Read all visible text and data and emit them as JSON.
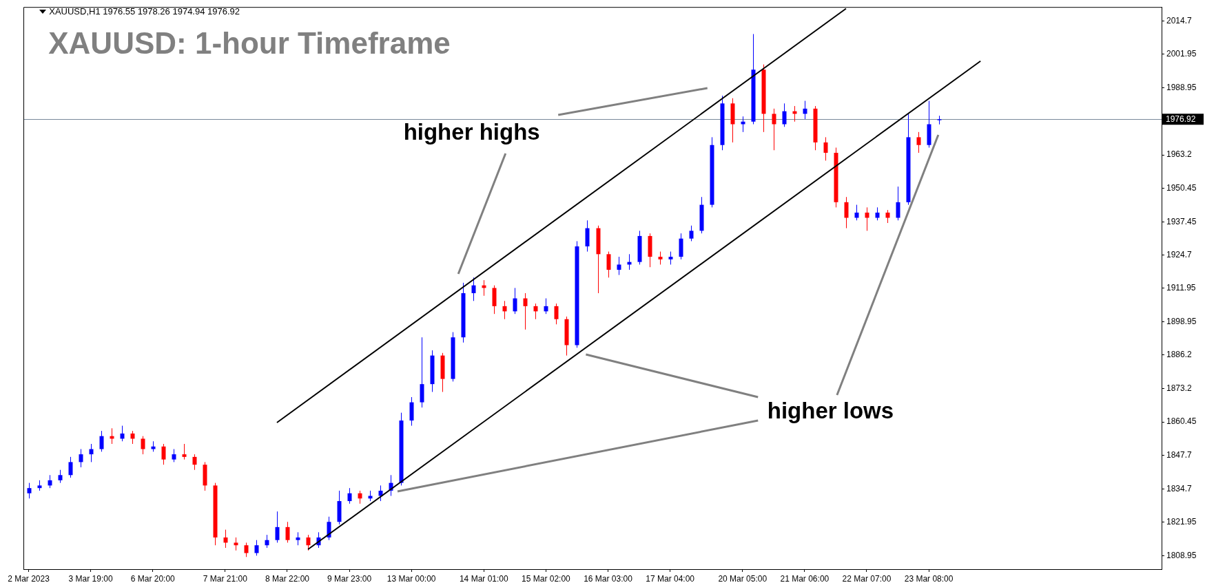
{
  "chart_data": {
    "type": "candlestick",
    "title": "XAUUSD: 1-hour Timeframe",
    "annotations": [
      "XAUUSD,H1  1976.55 1978.26 1974.94 1976.92",
      "higher highs",
      "higher lows"
    ],
    "ylim": [
      1803.8,
      2020.1
    ],
    "categories": [
      "2 Mar 2023",
      null,
      null,
      null,
      null,
      null,
      "3 Mar 19:00",
      null,
      null,
      null,
      null,
      null,
      "6 Mar 20:00",
      null,
      null,
      null,
      null,
      null,
      null,
      "7 Mar 21:00",
      null,
      null,
      null,
      null,
      null,
      "8 Mar 22:00",
      null,
      null,
      null,
      null,
      null,
      "9 Mar 23:00",
      null,
      null,
      null,
      null,
      null,
      "13 Mar 00:00",
      null,
      null,
      null,
      null,
      null,
      null,
      "14 Mar 01:00",
      null,
      null,
      null,
      null,
      null,
      "15 Mar 02:00",
      null,
      null,
      null,
      null,
      null,
      "16 Mar 03:00",
      null,
      null,
      null,
      null,
      null,
      "17 Mar 04:00",
      null,
      null,
      null,
      null,
      null,
      null,
      "20 Mar 05:00",
      null,
      null,
      null,
      null,
      null,
      "21 Mar 06:00",
      null,
      null,
      null,
      null,
      null,
      "22 Mar 07:00",
      null,
      null,
      null,
      null,
      null,
      "23 Mar 08:00",
      null,
      null,
      null,
      null,
      null,
      null,
      null,
      null,
      null,
      null,
      null,
      null,
      null,
      null,
      null,
      null,
      null,
      null,
      null,
      null,
      null,
      null
    ],
    "yticks": [
      1808.95,
      1821.95,
      1834.7,
      1847.7,
      1860.45,
      1873.2,
      1886.2,
      1898.95,
      1911.95,
      1924.7,
      1937.45,
      1950.45,
      1963.2,
      1988.95,
      2001.95,
      2014.7
    ],
    "ref_lines": [
      {
        "axis": "y",
        "value": 1976.92,
        "label": "1976.92",
        "color": "#778899"
      }
    ],
    "series": [
      {
        "type": "candlestick",
        "ohlc": [
          [
            1833,
            1837,
            1831,
            1835
          ],
          [
            1835,
            1838,
            1834,
            1836
          ],
          [
            1836,
            1840,
            1835,
            1838
          ],
          [
            1838,
            1842,
            1837,
            1840
          ],
          [
            1840,
            1847,
            1839,
            1845
          ],
          [
            1845,
            1850,
            1843,
            1848
          ],
          [
            1848,
            1852,
            1845,
            1850
          ],
          [
            1850,
            1857,
            1849,
            1855
          ],
          [
            1855,
            1858,
            1852,
            1854
          ],
          [
            1854,
            1859,
            1853,
            1856
          ],
          [
            1856,
            1857,
            1852,
            1854
          ],
          [
            1854,
            1855,
            1848,
            1850
          ],
          [
            1850,
            1853,
            1849,
            1851
          ],
          [
            1851,
            1852,
            1844,
            1846
          ],
          [
            1846,
            1850,
            1845,
            1848
          ],
          [
            1848,
            1852,
            1846,
            1847
          ],
          [
            1847,
            1848,
            1842,
            1844
          ],
          [
            1844,
            1845,
            1834,
            1836
          ],
          [
            1836,
            1837,
            1813,
            1816
          ],
          [
            1816,
            1819,
            1812,
            1814
          ],
          [
            1814,
            1816,
            1811,
            1813
          ],
          [
            1813,
            1814,
            1808.5,
            1810
          ],
          [
            1810,
            1815,
            1809,
            1813
          ],
          [
            1813,
            1817,
            1812,
            1815
          ],
          [
            1815,
            1826,
            1814,
            1820
          ],
          [
            1820,
            1822,
            1814,
            1815
          ],
          [
            1815,
            1818,
            1813,
            1816
          ],
          [
            1816,
            1817,
            1811,
            1813
          ],
          [
            1813,
            1818,
            1812,
            1816
          ],
          [
            1816,
            1824,
            1815,
            1822
          ],
          [
            1822,
            1834,
            1821,
            1830
          ],
          [
            1830,
            1835,
            1829,
            1833
          ],
          [
            1833,
            1834,
            1829,
            1831
          ],
          [
            1831,
            1834,
            1830,
            1832
          ],
          [
            1832,
            1836,
            1830,
            1834
          ],
          [
            1834,
            1840,
            1832,
            1837
          ],
          [
            1837,
            1864,
            1836,
            1861
          ],
          [
            1861,
            1870,
            1859,
            1868
          ],
          [
            1868,
            1893,
            1866,
            1875
          ],
          [
            1875,
            1888,
            1872,
            1886
          ],
          [
            1886,
            1887,
            1872,
            1877
          ],
          [
            1877,
            1895,
            1876,
            1893
          ],
          [
            1893,
            1914,
            1891,
            1910
          ],
          [
            1910,
            1916,
            1907,
            1913
          ],
          [
            1913,
            1915,
            1909,
            1912
          ],
          [
            1912,
            1913,
            1902,
            1905
          ],
          [
            1905,
            1907,
            1900,
            1903
          ],
          [
            1903,
            1912,
            1902,
            1908
          ],
          [
            1908,
            1910,
            1896,
            1905
          ],
          [
            1905,
            1906,
            1900,
            1903
          ],
          [
            1903,
            1908,
            1902,
            1905
          ],
          [
            1905,
            1906,
            1898,
            1900
          ],
          [
            1900,
            1901,
            1886,
            1890
          ],
          [
            1890,
            1930,
            1889,
            1928
          ],
          [
            1928,
            1938,
            1926,
            1935
          ],
          [
            1935,
            1936,
            1910,
            1925
          ],
          [
            1925,
            1926,
            1916,
            1919
          ],
          [
            1919,
            1924,
            1917,
            1921
          ],
          [
            1921,
            1925,
            1919,
            1922
          ],
          [
            1922,
            1934,
            1921,
            1932
          ],
          [
            1932,
            1933,
            1920,
            1924
          ],
          [
            1924,
            1926,
            1921,
            1923
          ],
          [
            1923,
            1926,
            1921,
            1924
          ],
          [
            1924,
            1933,
            1923,
            1931
          ],
          [
            1931,
            1936,
            1930,
            1934
          ],
          [
            1934,
            1947,
            1933,
            1944
          ],
          [
            1944,
            1970,
            1943,
            1967
          ],
          [
            1967,
            1986,
            1965,
            1983
          ],
          [
            1983,
            1985,
            1968,
            1975
          ],
          [
            1975,
            1978,
            1972,
            1976
          ],
          [
            1976,
            2009.7,
            1975,
            1996
          ],
          [
            1996,
            1998,
            1972,
            1979
          ],
          [
            1979,
            1981,
            1965,
            1975
          ],
          [
            1975,
            1983,
            1974,
            1980
          ],
          [
            1980,
            1982,
            1976,
            1979
          ],
          [
            1979,
            1984,
            1977,
            1981
          ],
          [
            1981,
            1982,
            1965,
            1968
          ],
          [
            1968,
            1970,
            1961,
            1964
          ],
          [
            1964,
            1966,
            1943,
            1945
          ],
          [
            1945,
            1947,
            1935,
            1939
          ],
          [
            1939,
            1944,
            1938,
            1941
          ],
          [
            1941,
            1943,
            1934,
            1939
          ],
          [
            1939,
            1943,
            1938,
            1941
          ],
          [
            1941,
            1942,
            1937,
            1939
          ],
          [
            1939,
            1951,
            1938,
            1945
          ],
          [
            1945,
            1979,
            1944,
            1970
          ],
          [
            1970,
            1972,
            1964,
            1967
          ],
          [
            1967,
            1984,
            1966,
            1975
          ],
          [
            1976.55,
            1978.26,
            1974.94,
            1976.92
          ],
          null,
          null,
          null,
          null,
          null,
          null,
          null,
          null,
          null,
          null,
          null,
          null,
          null,
          null,
          null,
          null,
          null,
          null,
          null,
          null,
          null
        ],
        "colors": [
          "#0000ff",
          "#0000ff",
          "#0000ff",
          "#0000ff",
          "#0000ff",
          "#0000ff",
          "#0000ff",
          "#0000ff",
          "#ff0000",
          "#0000ff",
          "#ff0000",
          "#ff0000",
          "#0000ff",
          "#ff0000",
          "#0000ff",
          "#ff0000",
          "#ff0000",
          "#ff0000",
          "#ff0000",
          "#ff0000",
          "#ff0000",
          "#ff0000",
          "#0000ff",
          "#0000ff",
          "#0000ff",
          "#ff0000",
          "#0000ff",
          "#ff0000",
          "#0000ff",
          "#0000ff",
          "#0000ff",
          "#0000ff",
          "#ff0000",
          "#0000ff",
          "#0000ff",
          "#0000ff",
          "#0000ff",
          "#0000ff",
          "#0000ff",
          "#0000ff",
          "#ff0000",
          "#0000ff",
          "#0000ff",
          "#0000ff",
          "#ff0000",
          "#ff0000",
          "#ff0000",
          "#0000ff",
          "#ff0000",
          "#ff0000",
          "#0000ff",
          "#ff0000",
          "#ff0000",
          "#0000ff",
          "#0000ff",
          "#ff0000",
          "#ff0000",
          "#0000ff",
          "#0000ff",
          "#0000ff",
          "#ff0000",
          "#ff0000",
          "#0000ff",
          "#0000ff",
          "#0000ff",
          "#0000ff",
          "#0000ff",
          "#0000ff",
          "#ff0000",
          "#0000ff",
          "#0000ff",
          "#ff0000",
          "#ff0000",
          "#0000ff",
          "#ff0000",
          "#0000ff",
          "#ff0000",
          "#ff0000",
          "#ff0000",
          "#ff0000",
          "#0000ff",
          "#ff0000",
          "#0000ff",
          "#ff0000",
          "#0000ff",
          "#0000ff",
          "#ff0000",
          "#0000ff",
          "#0000ff",
          null,
          null,
          null,
          null,
          null,
          null,
          null,
          null,
          null,
          null,
          null,
          null,
          null,
          null,
          null,
          null,
          null,
          null,
          null,
          null,
          null
        ]
      },
      {
        "type": "line",
        "color": "#000000",
        "values": [
          null,
          null,
          null,
          null,
          null,
          null,
          null,
          null,
          null,
          null,
          null,
          null,
          null,
          null,
          null,
          null,
          null,
          null,
          null,
          null,
          null,
          null,
          null,
          null,
          1860.2,
          null,
          null,
          null,
          null,
          null,
          null,
          null,
          null,
          null,
          null,
          null,
          null,
          null,
          null,
          null,
          null,
          null,
          null,
          null,
          null,
          null,
          null,
          null,
          null,
          null,
          null,
          null,
          null,
          null,
          null,
          null,
          null,
          null,
          null,
          null,
          null,
          null,
          null,
          null,
          null,
          null,
          null,
          null,
          null,
          null,
          null,
          null,
          null,
          null,
          null,
          null,
          null,
          null,
          null,
          2019.5,
          null,
          null,
          null,
          null,
          null,
          null,
          null,
          null,
          null,
          null,
          null,
          null,
          null,
          null,
          null,
          null,
          null,
          null,
          null,
          null,
          null,
          null,
          null,
          null,
          null,
          null,
          null,
          null,
          null,
          null
        ]
      },
      {
        "type": "line",
        "color": "#000000",
        "values": [
          null,
          null,
          null,
          null,
          null,
          null,
          null,
          null,
          null,
          null,
          null,
          null,
          null,
          null,
          null,
          null,
          null,
          null,
          null,
          null,
          null,
          null,
          null,
          null,
          null,
          null,
          null,
          1811.4,
          null,
          null,
          null,
          null,
          null,
          null,
          null,
          null,
          null,
          null,
          null,
          null,
          null,
          null,
          null,
          null,
          null,
          null,
          null,
          null,
          null,
          null,
          null,
          null,
          null,
          null,
          null,
          null,
          null,
          null,
          null,
          null,
          null,
          null,
          null,
          null,
          null,
          null,
          null,
          null,
          null,
          null,
          null,
          null,
          null,
          null,
          null,
          null,
          null,
          null,
          null,
          null,
          null,
          null,
          null,
          null,
          null,
          null,
          null,
          null,
          null,
          null,
          null,
          null,
          1999.3,
          null,
          null,
          null,
          null,
          null,
          null,
          null,
          null,
          null,
          null,
          null,
          null,
          null,
          null,
          null,
          null,
          null
        ]
      }
    ]
  }
}
